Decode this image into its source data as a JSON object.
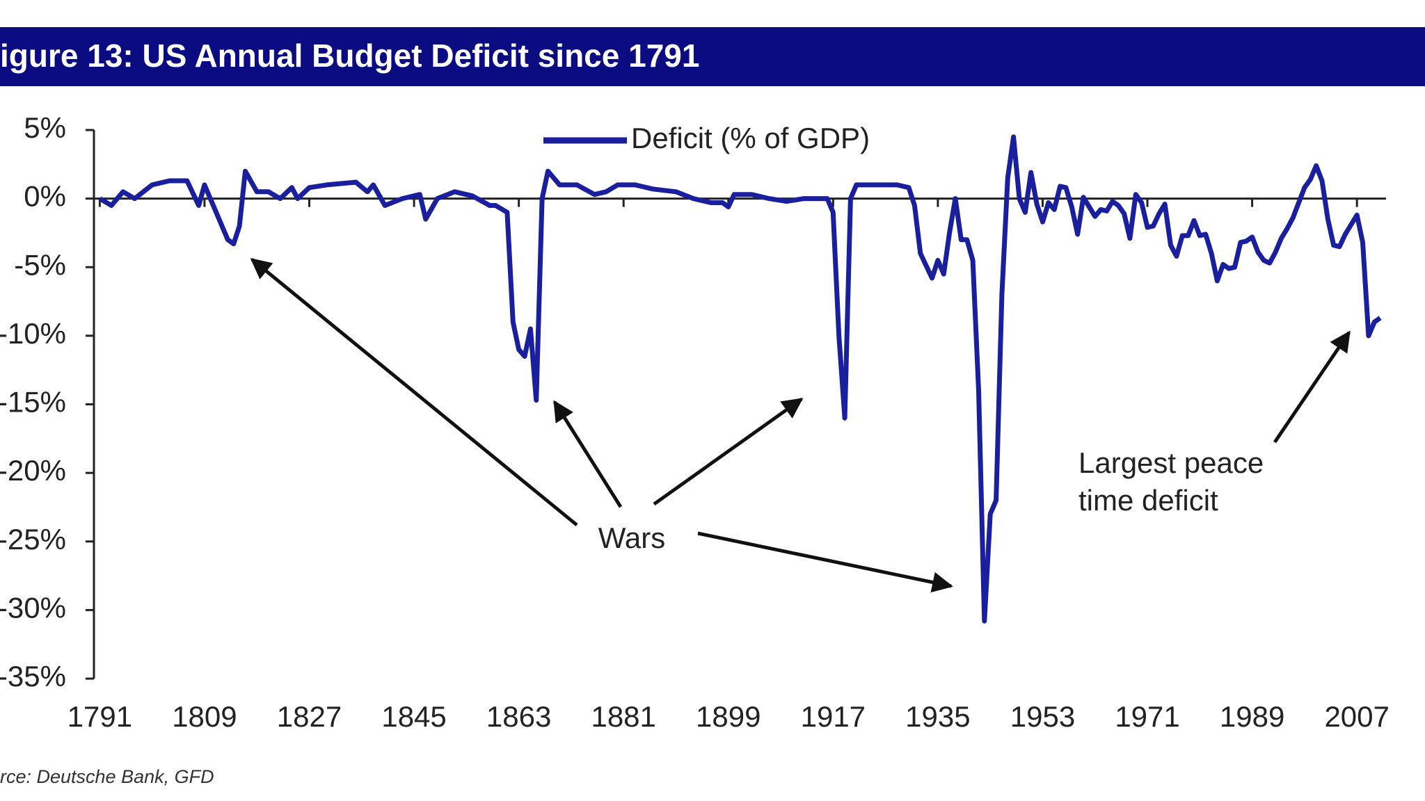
{
  "chart_data": {
    "type": "line",
    "title": "igure 13: US Annual Budget Deficit since 1791",
    "source": "rce: Deutsche Bank, GFD",
    "annotations": [
      "Wars",
      "Largest peace",
      "time deficit"
    ],
    "xlim": [
      1790,
      2012
    ],
    "xticks": [
      1791,
      1809,
      1827,
      1845,
      1863,
      1881,
      1899,
      1917,
      1935,
      1953,
      1971,
      1989,
      2007
    ],
    "ylim": [
      -35,
      5
    ],
    "yticks": [
      {
        "value": 5,
        "label": "5%"
      },
      {
        "value": 0,
        "label": "0%"
      },
      {
        "value": -5,
        "label": "-5%"
      },
      {
        "value": -10,
        "label": "-10%"
      },
      {
        "value": -15,
        "label": "-15%"
      },
      {
        "value": -20,
        "label": "-20%"
      },
      {
        "value": -25,
        "label": "-25%"
      },
      {
        "value": -30,
        "label": "-30%"
      },
      {
        "value": -35,
        "label": "-35%"
      }
    ],
    "grid": false,
    "legend": "top",
    "x": [
      1791,
      1793,
      1795,
      1797,
      1800,
      1803,
      1806,
      1808,
      1809,
      1811,
      1813,
      1814,
      1815,
      1816,
      1818,
      1820,
      1822,
      1824,
      1825,
      1827,
      1830,
      1835,
      1837,
      1838,
      1840,
      1843,
      1846,
      1847,
      1849,
      1852,
      1855,
      1858,
      1859,
      1861,
      1862,
      1863,
      1864,
      1865,
      1866,
      1867,
      1868,
      1870,
      1873,
      1876,
      1878,
      1880,
      1883,
      1886,
      1890,
      1893,
      1896,
      1898,
      1899,
      1900,
      1903,
      1906,
      1909,
      1912,
      1916,
      1917,
      1918,
      1919,
      1920,
      1921,
      1925,
      1928,
      1930,
      1931,
      1932,
      1934,
      1935,
      1936,
      1937,
      1938,
      1939,
      1940,
      1941,
      1942,
      1943,
      1944,
      1945,
      1946,
      1947,
      1948,
      1949,
      1950,
      1951,
      1952,
      1953,
      1954,
      1955,
      1956,
      1957,
      1958,
      1959,
      1960,
      1961,
      1962,
      1963,
      1964,
      1965,
      1966,
      1967,
      1968,
      1969,
      1970,
      1971,
      1972,
      1973,
      1974,
      1975,
      1976,
      1977,
      1978,
      1979,
      1980,
      1981,
      1982,
      1983,
      1984,
      1985,
      1986,
      1987,
      1988,
      1989,
      1990,
      1991,
      1992,
      1993,
      1994,
      1995,
      1996,
      1997,
      1998,
      1999,
      2000,
      2001,
      2002,
      2003,
      2004,
      2005,
      2006,
      2007,
      2008,
      2009,
      2010,
      2011
    ],
    "series": [
      {
        "name": "Deficit (% of GDP)",
        "color": "#1a1f9e",
        "values": [
          0,
          -0.5,
          0.5,
          0,
          1,
          1.3,
          1.3,
          -0.5,
          1,
          -1,
          -3,
          -3.3,
          -2,
          2,
          0.5,
          0.5,
          0,
          0.8,
          0,
          0.8,
          1,
          1.2,
          0.5,
          1,
          -0.5,
          0,
          0.3,
          -1.5,
          0,
          0.5,
          0.2,
          -0.5,
          -0.5,
          -1,
          -9,
          -11,
          -11.5,
          -9.5,
          -14.7,
          0,
          2,
          1,
          1,
          0.3,
          0.5,
          1,
          1,
          0.7,
          0.5,
          0,
          -0.3,
          -0.3,
          -0.6,
          0.3,
          0.3,
          0,
          -0.2,
          0,
          0,
          -1,
          -10,
          -16,
          0,
          1,
          1,
          1,
          0.8,
          -0.5,
          -4,
          -5.8,
          -4.5,
          -5.5,
          -2.5,
          0,
          -3,
          -3,
          -4.5,
          -14,
          -30.8,
          -23,
          -22,
          -7,
          1.5,
          4.5,
          0,
          -1,
          1.9,
          -0.4,
          -1.7,
          -0.3,
          -0.8,
          0.9,
          0.8,
          -0.6,
          -2.6,
          0.1,
          -0.6,
          -1.3,
          -0.8,
          -0.9,
          -0.2,
          -0.5,
          -1.1,
          -2.9,
          0.3,
          -0.3,
          -2.1,
          -2,
          -1.1,
          -0.4,
          -3.4,
          -4.2,
          -2.7,
          -2.7,
          -1.6,
          -2.7,
          -2.6,
          -4,
          -6,
          -4.8,
          -5.1,
          -5,
          -3.2,
          -3.1,
          -2.8,
          -3.9,
          -4.5,
          -4.7,
          -3.9,
          -2.9,
          -2.2,
          -1.4,
          -0.3,
          0.8,
          1.4,
          2.4,
          1.3,
          -1.5,
          -3.4,
          -3.5,
          -2.6,
          -1.9,
          -1.2,
          -3.2,
          -10,
          -9,
          -8.7
        ]
      }
    ]
  }
}
